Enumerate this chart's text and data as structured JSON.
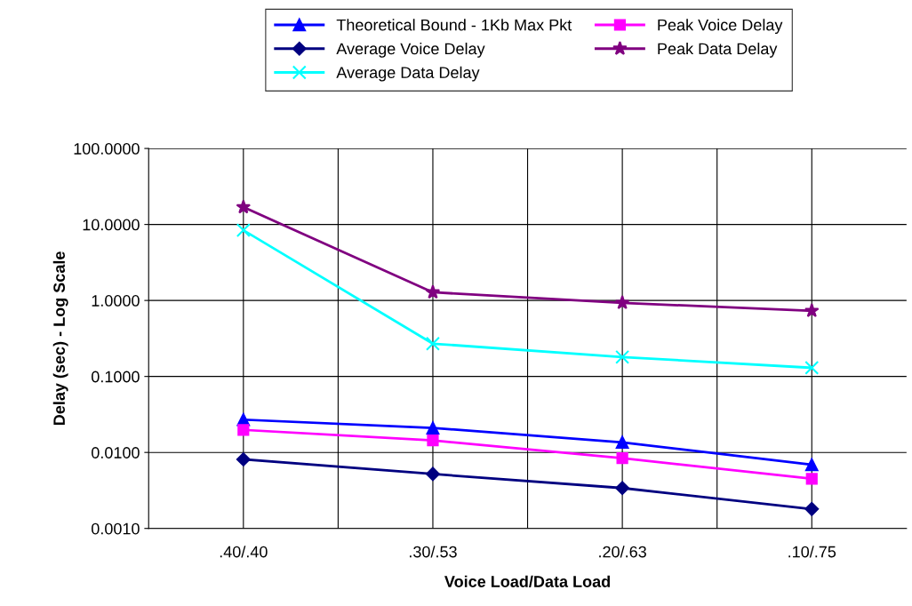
{
  "chart_data": {
    "type": "line",
    "xlabel": "Voice Load/Data Load",
    "ylabel": "Delay (sec) - Log Scale",
    "categories": [
      ".40/.40",
      ".30/.53",
      ".20/.63",
      ".10/.75"
    ],
    "series": [
      {
        "name": "Theoretical Bound - 1Kb Max Pkt",
        "color": "#0000ff",
        "marker": "triangle",
        "values": [
          0.027,
          0.021,
          0.0136,
          0.0069
        ]
      },
      {
        "name": "Peak Voice Delay",
        "color": "#ff00ff",
        "marker": "square",
        "values": [
          0.0198,
          0.0144,
          0.0084,
          0.0045
        ]
      },
      {
        "name": "Average Voice Delay",
        "color": "#000080",
        "marker": "diamond",
        "values": [
          0.0081,
          0.0052,
          0.0034,
          0.0018
        ]
      },
      {
        "name": "Peak Data Delay",
        "color": "#800080",
        "marker": "star",
        "values": [
          16.9,
          1.28,
          0.93,
          0.73
        ]
      },
      {
        "name": "Average Data Delay",
        "color": "#00ffff",
        "marker": "cross",
        "values": [
          8.4,
          0.27,
          0.18,
          0.13
        ]
      }
    ],
    "log": "y",
    "ylim": [
      0.001,
      100
    ],
    "yticks": [
      {
        "value": 0.001,
        "label": "0.0010"
      },
      {
        "value": 0.01,
        "label": "0.0100"
      },
      {
        "value": 0.1,
        "label": "0.1000"
      },
      {
        "value": 1,
        "label": "1.0000"
      },
      {
        "value": 10,
        "label": "10.0000"
      },
      {
        "value": 100,
        "label": "100.0000"
      }
    ],
    "grid": true,
    "legend": "top"
  }
}
